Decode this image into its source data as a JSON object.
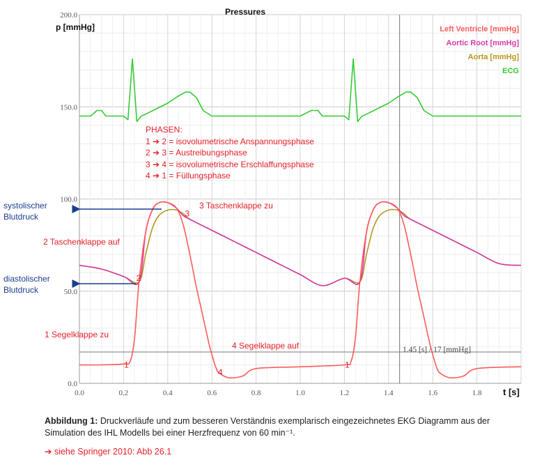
{
  "chart_data": {
    "type": "line",
    "title": "Pressures",
    "ylabel": "p [mmHg]",
    "xlabel": "t [s]",
    "xlim": [
      0,
      2.0
    ],
    "ylim": [
      0,
      200
    ],
    "grid": true,
    "legend_position": "top-right",
    "x_ticks": [
      "0.0",
      "0.2",
      "0.4",
      "0.6",
      "0.8",
      "1.0",
      "1.2",
      "1.4",
      "1.6",
      "1.8"
    ],
    "y_ticks": [
      "200.0",
      "150.0",
      "100.0",
      "50.0",
      "0.0"
    ],
    "series": [
      {
        "name": "Left Ventricle [mmHg]",
        "color": "#ff5a5a",
        "x": [
          0.0,
          0.1,
          0.2,
          0.23,
          0.25,
          0.27,
          0.3,
          0.33,
          0.36,
          0.4,
          0.44,
          0.47,
          0.5,
          0.53,
          0.56,
          0.59,
          0.62,
          0.64,
          0.68,
          0.74,
          0.8,
          1.0,
          1.2,
          1.23,
          1.25,
          1.27,
          1.3,
          1.33,
          1.36,
          1.4,
          1.44,
          1.47,
          1.5,
          1.53,
          1.56,
          1.59,
          1.62,
          1.64,
          1.68,
          1.74,
          1.8,
          2.0
        ],
        "y": [
          10,
          10,
          10.5,
          12,
          25,
          55,
          82,
          94,
          98,
          98,
          95,
          86,
          70,
          52,
          36,
          20,
          8,
          5,
          3,
          4,
          8,
          9,
          10,
          12,
          25,
          55,
          82,
          94,
          98,
          98,
          95,
          86,
          70,
          52,
          36,
          20,
          8,
          5,
          3,
          4,
          8,
          9
        ]
      },
      {
        "name": "Aortic Root [mmHg]",
        "color": "#d63aa8",
        "x": [
          0.0,
          0.1,
          0.2,
          0.27,
          0.3,
          0.33,
          0.36,
          0.4,
          0.44,
          0.47,
          0.5,
          0.6,
          0.7,
          0.8,
          0.9,
          1.0,
          1.1,
          1.2,
          1.27,
          1.3,
          1.33,
          1.36,
          1.4,
          1.44,
          1.47,
          1.5,
          1.6,
          1.7,
          1.8,
          1.9,
          2.0
        ],
        "y": [
          64,
          62,
          58,
          55,
          82,
          94,
          98,
          98,
          95,
          91,
          89,
          83,
          77,
          71,
          65,
          59,
          53,
          57,
          55,
          82,
          94,
          98,
          98,
          95,
          91,
          89,
          83,
          77,
          71,
          65,
          64
        ]
      },
      {
        "name": "Aorta [mmHg]",
        "color": "#b7961e",
        "x": [
          0.0,
          0.1,
          0.2,
          0.27,
          0.3,
          0.33,
          0.36,
          0.4,
          0.44,
          0.47,
          0.5,
          0.6,
          0.7,
          0.8,
          0.9,
          1.0,
          1.1,
          1.2,
          1.27,
          1.3,
          1.33,
          1.36,
          1.4,
          1.44,
          1.47,
          1.5,
          1.6,
          1.7,
          1.8,
          1.9,
          2.0
        ],
        "y": [
          64,
          62,
          58,
          55,
          70,
          84,
          91,
          94,
          94,
          92,
          89,
          83,
          77,
          71,
          65,
          59,
          53,
          57,
          55,
          70,
          84,
          91,
          94,
          94,
          92,
          89,
          83,
          77,
          71,
          65,
          64
        ]
      },
      {
        "name": "ECG",
        "color": "#33cc33",
        "x": [
          0.0,
          0.05,
          0.08,
          0.1,
          0.12,
          0.15,
          0.2,
          0.22,
          0.24,
          0.26,
          0.28,
          0.3,
          0.35,
          0.4,
          0.45,
          0.48,
          0.5,
          0.53,
          0.56,
          0.6,
          0.7,
          0.8,
          0.9,
          1.0,
          1.05,
          1.08,
          1.1,
          1.12,
          1.15,
          1.2,
          1.22,
          1.24,
          1.26,
          1.28,
          1.3,
          1.35,
          1.4,
          1.45,
          1.48,
          1.5,
          1.53,
          1.56,
          1.6,
          1.7,
          1.8,
          1.9,
          2.0
        ],
        "y": [
          145,
          145,
          148,
          148,
          145,
          145,
          145,
          143,
          176,
          142,
          145,
          146,
          149,
          152,
          156,
          158,
          158,
          155,
          148,
          145,
          145,
          145,
          145,
          145,
          148,
          148,
          145,
          145,
          145,
          145,
          143,
          176,
          142,
          145,
          146,
          149,
          152,
          156,
          158,
          158,
          155,
          148,
          145,
          145,
          145,
          145,
          145
        ]
      }
    ],
    "cursor": {
      "x": 1.45,
      "y": 17,
      "label": "1.45 [s] / 17 [mmHg]"
    },
    "annotations": {
      "phases_title": "PHASEN:",
      "phase_lines": [
        "1 ➔ 2 = isovolumetrische Anspannungsphase",
        "2 ➔ 3 = Austreibungsphase",
        "3 ➔ 4 = isovolumetrische Erschlaffungsphase",
        "4 ➔ 1 = Füllungsphase"
      ],
      "point_labels": [
        {
          "text": "1",
          "x": 0.215,
          "y": 10
        },
        {
          "text": "2",
          "x": 0.27,
          "y": 57
        },
        {
          "text": "3",
          "x": 0.49,
          "y": 92
        },
        {
          "text": "4",
          "x": 0.64,
          "y": 6
        },
        {
          "text": "1",
          "x": 1.215,
          "y": 10
        }
      ],
      "tascheklappe_zu": "3 Taschenklappe zu",
      "tascheklappe_auf": "2 Taschenklappe auf",
      "segelklappe_zu": "1 Segelklappe zu",
      "segelklappe_auf": "4 Segelklappe auf",
      "systolic_l1": "systolischer",
      "systolic_l2": "Blutdruck",
      "diastolic_l1": "diastolischer",
      "diastolic_l2": "Blutdruck"
    }
  },
  "caption": {
    "label": "Abbildung 1:",
    "text": " Druckverläufe und zum besseren Verständnis exemplarisch eingezeichnetes EKG Diagramm aus der Simulation des IHL Modells bei einer Herzfrequenz von 60 min⁻¹."
  },
  "reference": "➔ siehe Springer 2010: Abb 26.1"
}
